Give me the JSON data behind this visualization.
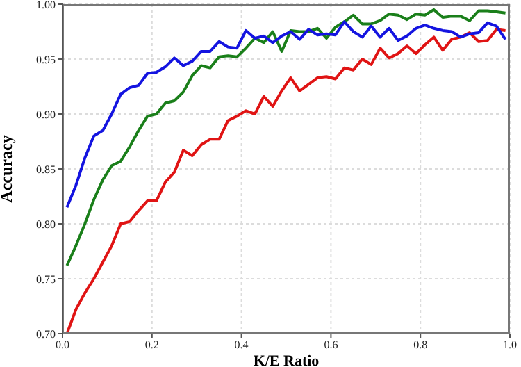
{
  "chart_data": {
    "type": "line",
    "xlabel": "K/E Ratio",
    "ylabel": "Accuracy",
    "x": [
      0.01,
      0.03,
      0.05,
      0.07,
      0.09,
      0.11,
      0.13,
      0.15,
      0.17,
      0.19,
      0.21,
      0.23,
      0.25,
      0.27,
      0.29,
      0.31,
      0.33,
      0.35,
      0.37,
      0.39,
      0.41,
      0.43,
      0.45,
      0.47,
      0.49,
      0.51,
      0.53,
      0.55,
      0.57,
      0.59,
      0.61,
      0.63,
      0.65,
      0.67,
      0.69,
      0.71,
      0.73,
      0.75,
      0.77,
      0.79,
      0.81,
      0.83,
      0.85,
      0.87,
      0.89,
      0.91,
      0.93,
      0.95,
      0.97,
      0.99
    ],
    "series": [
      {
        "color": "#e01414",
        "values": [
          0.7,
          0.722,
          0.737,
          0.75,
          0.765,
          0.78,
          0.8,
          0.802,
          0.812,
          0.821,
          0.821,
          0.838,
          0.847,
          0.867,
          0.862,
          0.872,
          0.877,
          0.877,
          0.894,
          0.898,
          0.903,
          0.9,
          0.916,
          0.907,
          0.921,
          0.933,
          0.921,
          0.927,
          0.933,
          0.934,
          0.932,
          0.942,
          0.94,
          0.95,
          0.945,
          0.96,
          0.951,
          0.955,
          0.962,
          0.955,
          0.963,
          0.97,
          0.958,
          0.968,
          0.97,
          0.974,
          0.966,
          0.967,
          0.977,
          0.976
        ]
      },
      {
        "color": "#1a7f1a",
        "values": [
          0.762,
          0.78,
          0.8,
          0.822,
          0.84,
          0.853,
          0.857,
          0.87,
          0.885,
          0.898,
          0.9,
          0.91,
          0.912,
          0.92,
          0.935,
          0.944,
          0.942,
          0.952,
          0.953,
          0.952,
          0.96,
          0.969,
          0.965,
          0.975,
          0.957,
          0.976,
          0.975,
          0.975,
          0.978,
          0.969,
          0.979,
          0.984,
          0.99,
          0.982,
          0.982,
          0.985,
          0.991,
          0.99,
          0.986,
          0.991,
          0.99,
          0.995,
          0.988,
          0.989,
          0.989,
          0.985,
          0.994,
          0.994,
          0.993,
          0.992
        ]
      },
      {
        "color": "#1414e0",
        "values": [
          0.815,
          0.835,
          0.86,
          0.88,
          0.885,
          0.9,
          0.918,
          0.924,
          0.926,
          0.937,
          0.938,
          0.943,
          0.951,
          0.944,
          0.948,
          0.957,
          0.957,
          0.966,
          0.961,
          0.96,
          0.976,
          0.969,
          0.971,
          0.965,
          0.971,
          0.975,
          0.968,
          0.977,
          0.972,
          0.973,
          0.972,
          0.984,
          0.975,
          0.97,
          0.98,
          0.97,
          0.978,
          0.967,
          0.971,
          0.978,
          0.981,
          0.978,
          0.976,
          0.975,
          0.97,
          0.973,
          0.974,
          0.983,
          0.98,
          0.968
        ]
      }
    ],
    "xlim": [
      0,
      1
    ],
    "xticks": [
      {
        "value": 0,
        "label": "0.0"
      },
      {
        "value": 0.2,
        "label": "0.2"
      },
      {
        "value": 0.4,
        "label": "0.4"
      },
      {
        "value": 0.6,
        "label": "0.6"
      },
      {
        "value": 0.8,
        "label": "0.8"
      },
      {
        "value": 1,
        "label": "1.0"
      }
    ],
    "ylim": [
      0.7,
      1
    ],
    "yticks": [
      {
        "value": 0.7,
        "label": "0.70"
      },
      {
        "value": 0.75,
        "label": "0.75"
      },
      {
        "value": 0.8,
        "label": "0.80"
      },
      {
        "value": 0.85,
        "label": "0.85"
      },
      {
        "value": 0.9,
        "label": "0.90"
      },
      {
        "value": 0.95,
        "label": "0.95"
      },
      {
        "value": 1,
        "label": "1.00"
      }
    ],
    "grid": true,
    "marker": "none",
    "line_style": "solid"
  }
}
